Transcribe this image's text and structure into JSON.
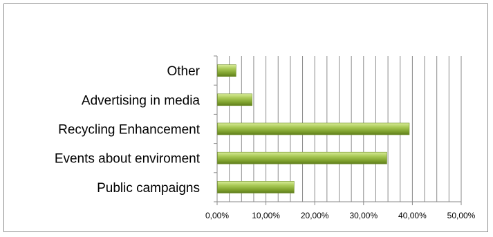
{
  "chart_data": {
    "type": "bar",
    "orientation": "horizontal",
    "categories": [
      "Public campaigns",
      "Events about enviroment",
      "Recycling Enhancement",
      "Advertising in media",
      "Other"
    ],
    "values": [
      15.7,
      34.7,
      39.3,
      7.1,
      3.8
    ],
    "xlim": [
      0,
      50
    ],
    "xticks": [
      "0,00%",
      "10,00%",
      "20,00%",
      "30,00%",
      "40,00%",
      "50,00%"
    ],
    "grid": true,
    "legend": "none",
    "bar_color": "#8fb23a"
  }
}
